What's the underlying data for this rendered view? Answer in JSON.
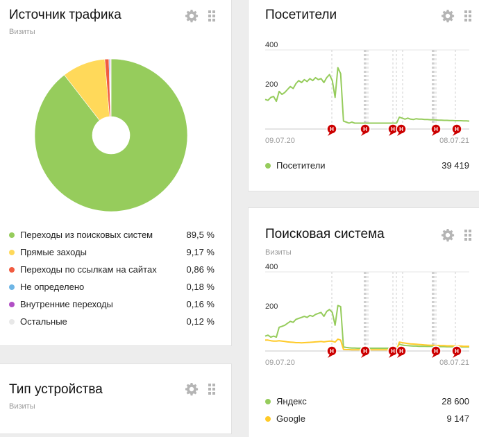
{
  "traffic_card": {
    "title": "Источник трафика",
    "subtitle": "Визиты",
    "legend": [
      {
        "label": "Переходы из поисковых систем",
        "value": "89,5 %",
        "color": "#96cc5c"
      },
      {
        "label": "Прямые заходы",
        "value": "9,17 %",
        "color": "#ffd95a"
      },
      {
        "label": "Переходы по ссылкам на сайтах",
        "value": "0,86 %",
        "color": "#f15b40"
      },
      {
        "label": "Не определено",
        "value": "0,18 %",
        "color": "#6eb6e6"
      },
      {
        "label": "Внутренние переходы",
        "value": "0,16 %",
        "color": "#b14fc5"
      },
      {
        "label": "Остальные",
        "value": "0,12 %",
        "color": "#e8e8e8"
      }
    ]
  },
  "device_card": {
    "title": "Тип устройства",
    "subtitle": "Визиты"
  },
  "visitors_card": {
    "title": "Посетители",
    "y_ticks": [
      "400",
      "200"
    ],
    "date_start": "09.07.20",
    "date_end": "08.07.21",
    "marker_letter": "Н",
    "legend": [
      {
        "label": "Посетители",
        "value": "39 419",
        "color": "#96cc5c"
      }
    ]
  },
  "search_card": {
    "title": "Поисковая система",
    "subtitle": "Визиты",
    "y_ticks": [
      "400",
      "200"
    ],
    "date_start": "09.07.20",
    "date_end": "08.07.21",
    "marker_letter": "Н",
    "legend": [
      {
        "label": "Яндекс",
        "value": "28 600",
        "color": "#96cc5c"
      },
      {
        "label": "Google",
        "value": "9 147",
        "color": "#ffca28"
      }
    ]
  },
  "chart_data": [
    {
      "type": "pie",
      "categories": [
        "Переходы из поисковых систем",
        "Прямые заходы",
        "Переходы по ссылкам на сайтах",
        "Не определено",
        "Внутренние переходы",
        "Остальные"
      ],
      "values": [
        89.5,
        9.17,
        0.86,
        0.18,
        0.16,
        0.12
      ],
      "colors": [
        "#96cc5c",
        "#ffd95a",
        "#f15b40",
        "#6eb6e6",
        "#b14fc5",
        "#e8e8e8"
      ]
    },
    {
      "type": "line",
      "x_range": [
        "09.07.20",
        "08.07.21"
      ],
      "ylim": [
        0,
        400
      ],
      "series": [
        {
          "name": "Посетители",
          "color": "#96cc5c",
          "values": [
            150,
            145,
            160,
            165,
            140,
            190,
            175,
            185,
            200,
            215,
            205,
            230,
            245,
            235,
            250,
            240,
            255,
            245,
            260,
            250,
            255,
            235,
            260,
            275,
            245,
            160,
            310,
            280,
            40,
            35,
            30,
            35,
            30,
            30,
            30,
            30,
            30,
            30,
            30,
            30,
            30,
            30,
            30,
            30,
            30,
            30,
            30,
            30,
            60,
            55,
            50,
            55,
            50,
            48,
            52,
            50,
            50,
            48,
            48,
            47,
            47,
            46,
            45,
            45,
            44,
            44,
            43,
            43,
            42,
            42,
            42,
            41,
            41,
            40
          ]
        }
      ]
    },
    {
      "type": "line",
      "x_range": [
        "09.07.20",
        "08.07.21"
      ],
      "ylim": [
        0,
        400
      ],
      "series": [
        {
          "name": "Яндекс",
          "color": "#96cc5c",
          "values": [
            75,
            80,
            70,
            75,
            70,
            120,
            125,
            130,
            140,
            150,
            145,
            160,
            165,
            170,
            175,
            170,
            180,
            175,
            185,
            190,
            195,
            175,
            200,
            210,
            195,
            130,
            230,
            225,
            20,
            18,
            16,
            15,
            15,
            14,
            14,
            14,
            14,
            14,
            14,
            14,
            14,
            14,
            14,
            14,
            14,
            14,
            14,
            14,
            35,
            30,
            28,
            27,
            26,
            25,
            25,
            24,
            24,
            24,
            23,
            23,
            23,
            22,
            22,
            22,
            22,
            21,
            21,
            21,
            20,
            20,
            20,
            20,
            20,
            20
          ]
        },
        {
          "name": "Google",
          "color": "#ffca28",
          "values": [
            55,
            55,
            52,
            50,
            50,
            52,
            50,
            48,
            46,
            45,
            44,
            42,
            42,
            41,
            42,
            43,
            44,
            45,
            46,
            47,
            48,
            46,
            48,
            50,
            49,
            45,
            60,
            55,
            8,
            7,
            7,
            6,
            6,
            6,
            6,
            6,
            6,
            6,
            6,
            6,
            6,
            6,
            6,
            6,
            6,
            6,
            6,
            6,
            45,
            42,
            40,
            38,
            36,
            35,
            34,
            33,
            32,
            31,
            30,
            29,
            29,
            28,
            28,
            27,
            27,
            26,
            26,
            26,
            25,
            25,
            25,
            24,
            24,
            24
          ]
        }
      ]
    }
  ]
}
